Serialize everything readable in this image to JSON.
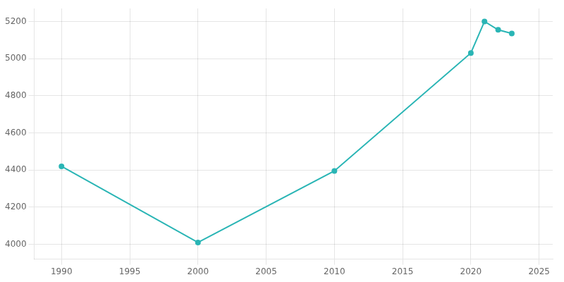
{
  "chart_data": {
    "type": "line",
    "x": [
      1990,
      2000,
      2010,
      2020,
      2021,
      2022,
      2023
    ],
    "values": [
      4420,
      4010,
      4395,
      5030,
      5200,
      5155,
      5135
    ],
    "color": "#2ab5b5",
    "marker": "circle",
    "xlim": [
      1988,
      2026
    ],
    "ylim": [
      3920,
      5270
    ],
    "xticks": [
      1990,
      1995,
      2000,
      2005,
      2010,
      2015,
      2020,
      2025
    ],
    "yticks": [
      4000,
      4200,
      4400,
      4600,
      4800,
      5000,
      5200
    ],
    "grid": true
  }
}
